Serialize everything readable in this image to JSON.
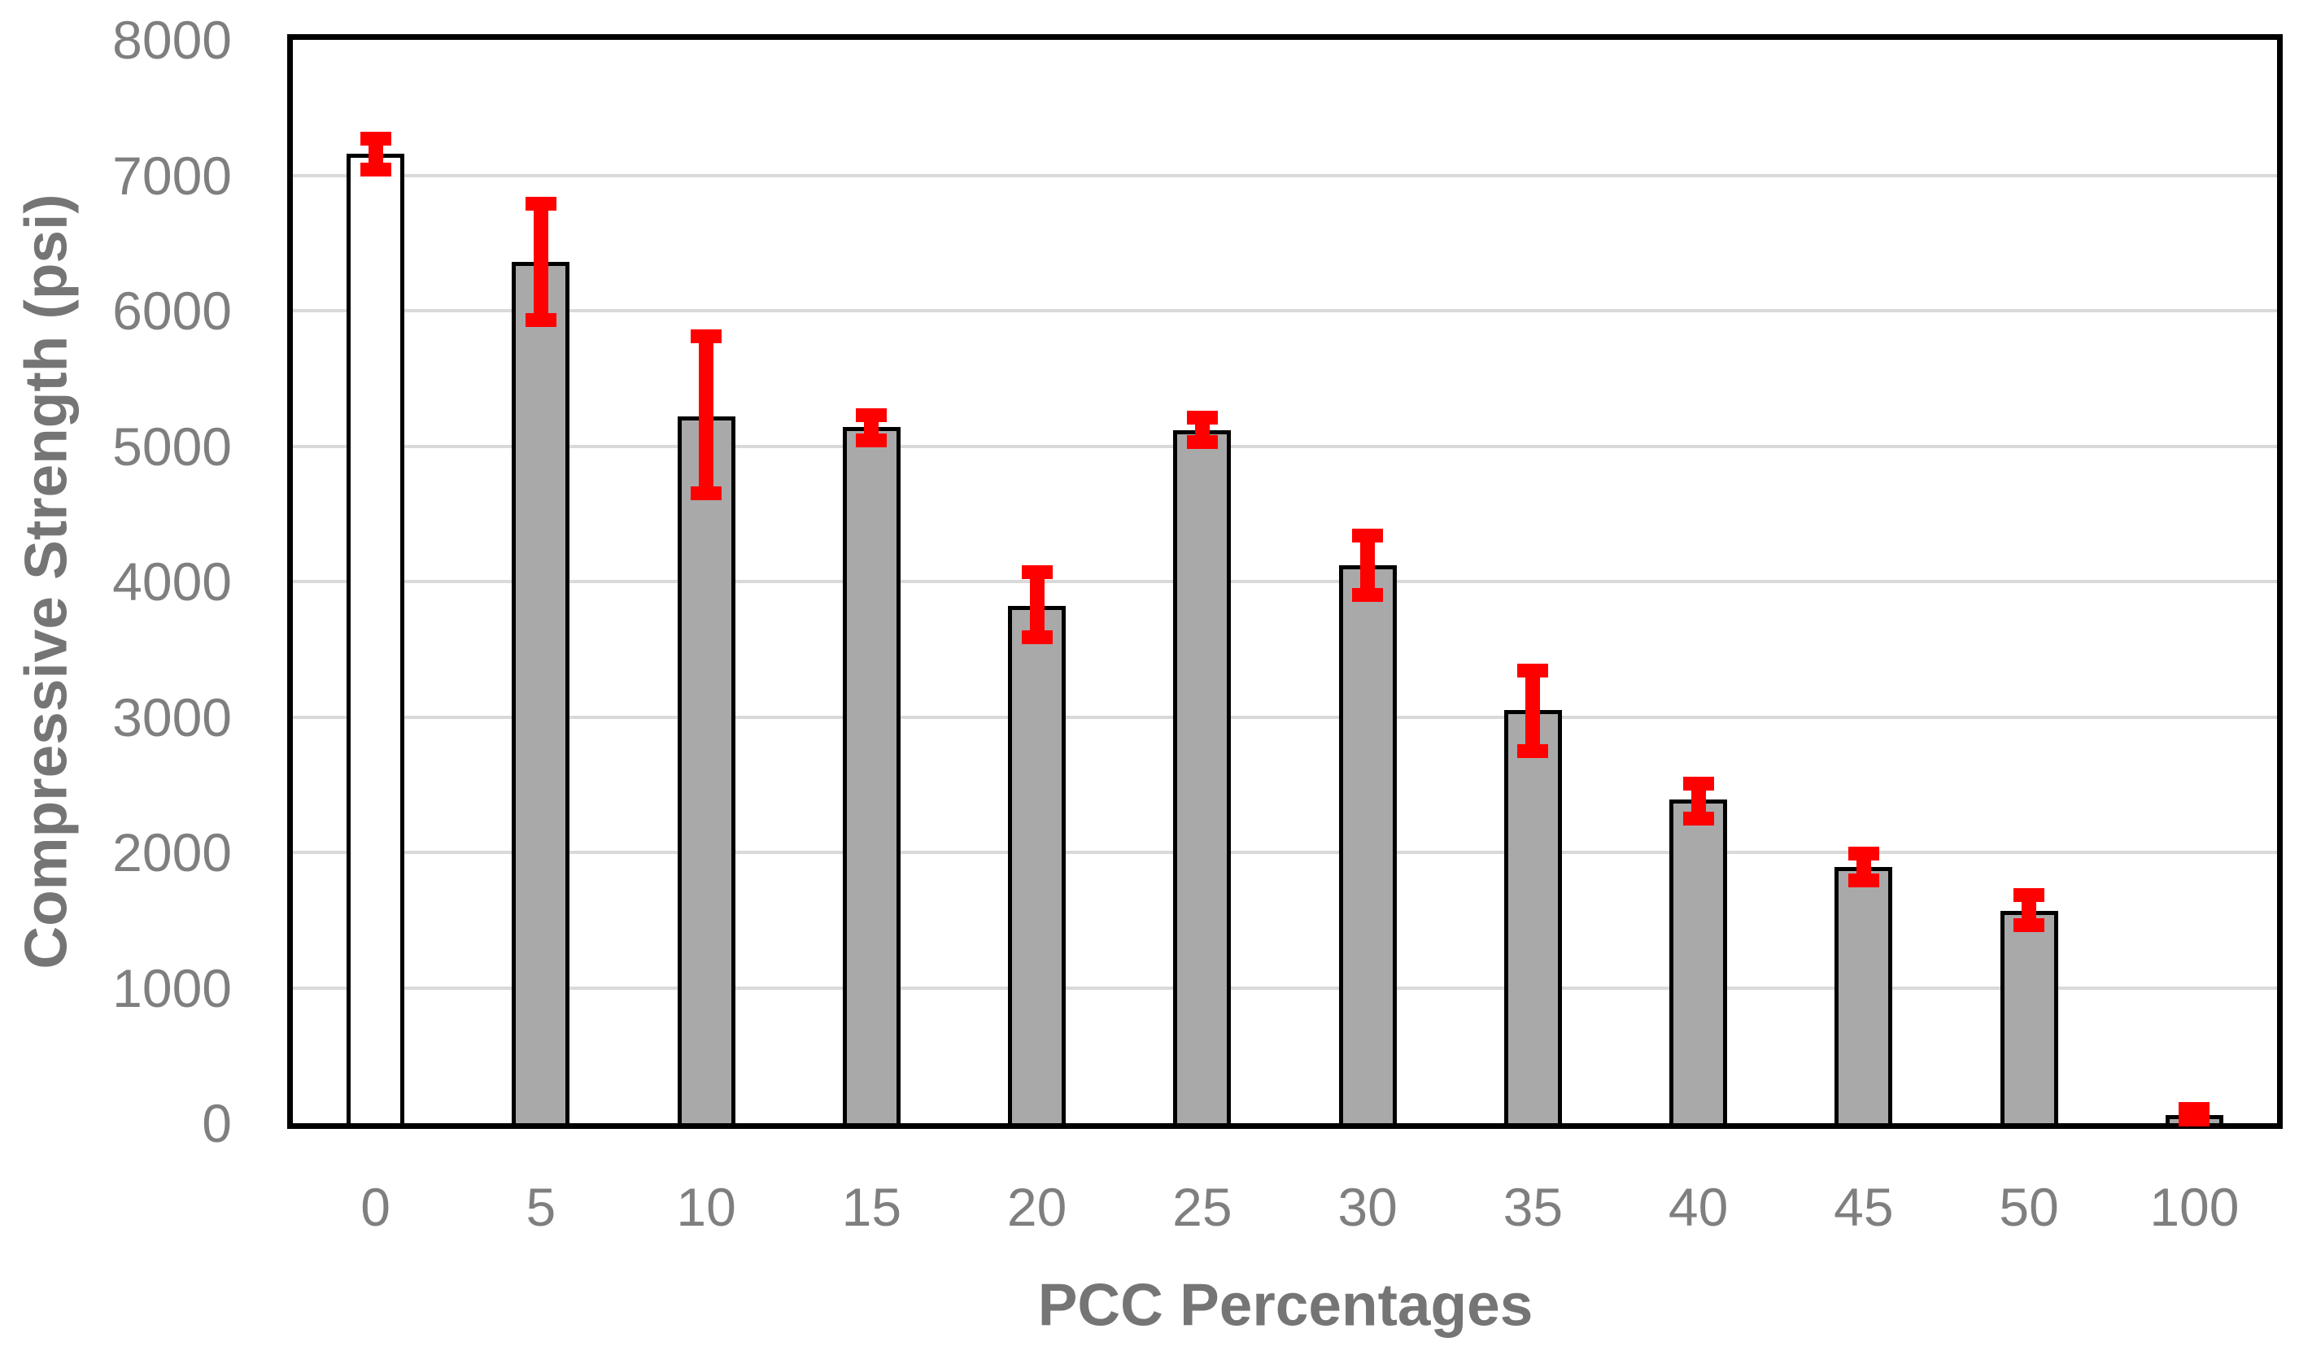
{
  "style": {
    "background": "#ffffff",
    "bar_fill": "#a9a9a9",
    "control_bar_fill": "#ffffff",
    "bar_border": "#000000",
    "error_bar_color": "#ff0000",
    "gridline_color": "#d9d9d9",
    "axis_border_color": "#000000",
    "tick_label_color": "#7f7f7f",
    "axis_title_color": "#757575"
  },
  "chart_data": {
    "type": "bar",
    "title": "",
    "xlabel": "PCC Percentages",
    "ylabel": "Compressive Strength (psi)",
    "categories": [
      "0",
      "5",
      "10",
      "15",
      "20",
      "25",
      "30",
      "35",
      "40",
      "45",
      "50",
      "100"
    ],
    "values": [
      7160,
      6360,
      5220,
      5140,
      3820,
      5120,
      4120,
      3050,
      2390,
      1890,
      1570,
      60
    ],
    "error_high": [
      7270,
      6790,
      5810,
      5230,
      4070,
      5210,
      4340,
      3340,
      2510,
      1990,
      1685,
      105
    ],
    "error_low": [
      7040,
      5930,
      4650,
      5040,
      3590,
      5030,
      3900,
      2750,
      2250,
      1790,
      1460,
      25
    ],
    "bar_colors": [
      "#ffffff",
      "#a9a9a9",
      "#a9a9a9",
      "#a9a9a9",
      "#a9a9a9",
      "#a9a9a9",
      "#a9a9a9",
      "#a9a9a9",
      "#a9a9a9",
      "#a9a9a9",
      "#a9a9a9",
      "#a9a9a9"
    ],
    "ylim": [
      0,
      8000
    ],
    "ytick_interval": 1000,
    "ytick_labels": [
      "0",
      "1000",
      "2000",
      "3000",
      "4000",
      "5000",
      "6000",
      "7000",
      "8000"
    ],
    "grid": true,
    "legend": false,
    "error_bars": true
  }
}
